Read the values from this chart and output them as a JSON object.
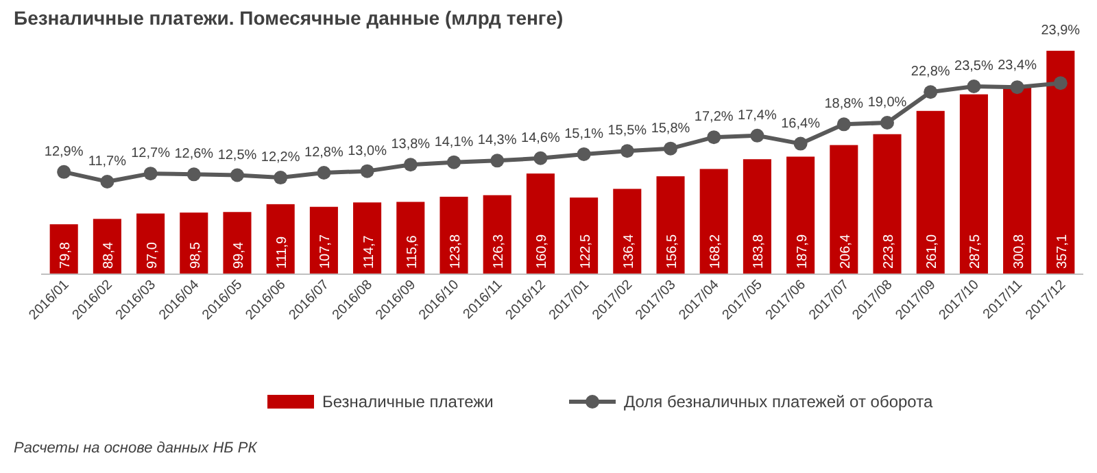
{
  "chart_data": {
    "type": "bar",
    "title": "Безналичные платежи. Помесячные данные (млрд тенге)",
    "categories": [
      "2016/01",
      "2016/02",
      "2016/03",
      "2016/04",
      "2016/05",
      "2016/06",
      "2016/07",
      "2016/08",
      "2016/09",
      "2016/10",
      "2016/11",
      "2016/12",
      "2017/01",
      "2017/02",
      "2017/03",
      "2017/04",
      "2017/05",
      "2017/06",
      "2017/07",
      "2017/08",
      "2017/09",
      "2017/10",
      "2017/11",
      "2017/12"
    ],
    "series": [
      {
        "name": "Безналичные платежи",
        "color": "#c00000",
        "values": [
          79.8,
          88.4,
          97.0,
          98.5,
          99.4,
          111.9,
          107.7,
          114.7,
          115.6,
          123.8,
          126.3,
          160.9,
          122.5,
          136.4,
          156.5,
          168.2,
          183.8,
          187.9,
          206.4,
          223.8,
          261.0,
          287.5,
          300.8,
          357.1
        ],
        "value_labels": [
          "79,8",
          "88,4",
          "97,0",
          "98,5",
          "99,4",
          "111,9",
          "107,7",
          "114,7",
          "115,6",
          "123,8",
          "126,3",
          "160,9",
          "122,5",
          "136,4",
          "156,5",
          "168,2",
          "183,8",
          "187,9",
          "206,4",
          "223,8",
          "261,0",
          "287,5",
          "300,8",
          "357,1"
        ]
      },
      {
        "name": "Доля безналичных платежей от оборота",
        "type": "line",
        "axis": "y2",
        "color": "#595959",
        "values": [
          12.9,
          11.7,
          12.7,
          12.6,
          12.5,
          12.2,
          12.8,
          13.0,
          13.8,
          14.1,
          14.3,
          14.6,
          15.1,
          15.5,
          15.8,
          17.2,
          17.4,
          16.4,
          18.8,
          19.0,
          22.8,
          23.5,
          23.4,
          23.9
        ],
        "value_labels": [
          "12,9%",
          "11,7%",
          "12,7%",
          "12,6%",
          "12,5%",
          "12,2%",
          "12,8%",
          "13,0%",
          "13,8%",
          "14,1%",
          "14,3%",
          "14,6%",
          "15,1%",
          "15,5%",
          "15,8%",
          "17,2%",
          "17,4%",
          "16,4%",
          "18,8%",
          "19,0%",
          "22,8%",
          "23,5%",
          "23,4%",
          "23,9%"
        ]
      }
    ],
    "tick_labels": "x",
    "marker": "circle",
    "line_style": "solid",
    "legend": "bottom",
    "annotations": [
      "Расчеты на основе данных НБ РК"
    ]
  }
}
